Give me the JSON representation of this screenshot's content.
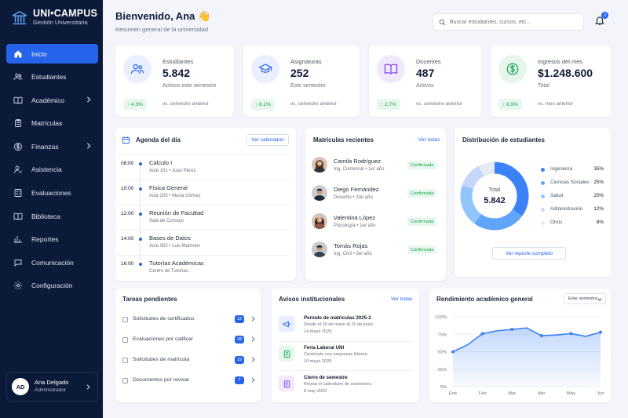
{
  "brand": {
    "title": "UNI•CAMPUS",
    "subtitle": "Gestión Universitaria"
  },
  "nav": {
    "items": [
      {
        "label": "Inicio"
      },
      {
        "label": "Estudiantes"
      },
      {
        "label": "Académico"
      },
      {
        "label": "Matrículas"
      },
      {
        "label": "Finanzas"
      },
      {
        "label": "Asistencia"
      },
      {
        "label": "Evaluaciones"
      },
      {
        "label": "Biblioteca"
      },
      {
        "label": "Reportes"
      },
      {
        "label": "Comunicación"
      },
      {
        "label": "Configuración"
      }
    ]
  },
  "user": {
    "initials": "AD",
    "name": "Ana Delgado",
    "role": "Administrador"
  },
  "header": {
    "greeting": "Bienvenido, Ana 👋",
    "subtitle": "Resumen general de la universidad",
    "search_placeholder": "Buscar estudiantes, cursos, etc...",
    "notifications": "3"
  },
  "stats": [
    {
      "label": "Estudiantes",
      "value": "5.842",
      "note": "Activos este semestre",
      "trend": "↑ 4.3%",
      "compare": "vs. semestre anterior"
    },
    {
      "label": "Asignaturas",
      "value": "252",
      "note": "Este semestre",
      "trend": "↑ 6.1%",
      "compare": "vs. semestre anterior"
    },
    {
      "label": "Docentes",
      "value": "487",
      "note": "Activos",
      "trend": "↑ 2.7%",
      "compare": "vs. semestre anterior"
    },
    {
      "label": "Ingresos del mes",
      "value": "$1.248.600",
      "note": "Total",
      "trend": "↑ 8.9%",
      "compare": "vs. mes anterior"
    }
  ],
  "agenda": {
    "title": "Agenda del día",
    "button": "Ver calendario",
    "items": [
      {
        "time": "08:00",
        "title": "Cálculo I",
        "meta": "Aula 101  •  Juan Pérez"
      },
      {
        "time": "10:00",
        "title": "Física General",
        "meta": "Aula 203  •  María Gómez"
      },
      {
        "time": "12:00",
        "title": "Reunión de Facultad",
        "meta": "Sala de Consejo"
      },
      {
        "time": "14:00",
        "title": "Bases de Datos",
        "meta": "Aula 302  •  Luis Martínez"
      },
      {
        "time": "16:00",
        "title": "Tutorías Académicas",
        "meta": "Centro de Tutorías"
      }
    ]
  },
  "enrollments": {
    "title": "Matrículas recientes",
    "link": "Ver todas",
    "items": [
      {
        "name": "Camila Rodríguez",
        "meta": "Ing. Comercial  •  1er año",
        "status": "Confirmada"
      },
      {
        "name": "Diego Fernández",
        "meta": "Derecho  •  2do año",
        "status": "Confirmada"
      },
      {
        "name": "Valentina López",
        "meta": "Psicología  •  1er año",
        "status": "Confirmada"
      },
      {
        "name": "Tomás Rojas",
        "meta": "Ing. Civil  •  3er año",
        "status": "Confirmada"
      }
    ]
  },
  "distribution": {
    "title": "Distribución de estudiantes",
    "center_label": "Total",
    "center_value": "5.842",
    "button": "Ver reporte completo",
    "segments": [
      {
        "name": "Ingeniería",
        "pct": "35%",
        "value": 35,
        "color": "#3b82f6"
      },
      {
        "name": "Ciencias Sociales",
        "pct": "25%",
        "value": 25,
        "color": "#60a5fa"
      },
      {
        "name": "Salud",
        "pct": "20%",
        "value": 20,
        "color": "#93c5fd"
      },
      {
        "name": "Administración",
        "pct": "12%",
        "value": 12,
        "color": "#c7d7fb"
      },
      {
        "name": "Otros",
        "pct": "8%",
        "value": 8,
        "color": "#e5eaf3"
      }
    ]
  },
  "tasks": {
    "title": "Tareas pendientes",
    "items": [
      {
        "label": "Solicitudes de certificados",
        "count": "12"
      },
      {
        "label": "Evaluaciones por calificar",
        "count": "28"
      },
      {
        "label": "Solicitudes de matrícula",
        "count": "19"
      },
      {
        "label": "Documentos por revisar",
        "count": "7"
      }
    ]
  },
  "notices": {
    "title": "Avisos institucionales",
    "link": "Ver todas",
    "items": [
      {
        "title": "Periodo de matrículas 2025-2",
        "desc": "Desde el 20 de mayo al 15 de junio.",
        "date": "14 mayo 2025",
        "icon": "megaphone-icon",
        "bg": "#e6efff",
        "fg": "#2563eb"
      },
      {
        "title": "Feria Laboral UNI",
        "desc": "Conéctate con empresas líderes.",
        "date": "10 mayo 2025",
        "icon": "document-icon",
        "bg": "#e6f6ec",
        "fg": "#16a34a"
      },
      {
        "title": "Cierre de semestre",
        "desc": "Revisa el calendario de exámenes.",
        "date": "8 may 2025",
        "icon": "notepad-icon",
        "bg": "#efe9fb",
        "fg": "#7c3aed"
      }
    ]
  },
  "performance": {
    "title": "Rendimiento académico general",
    "select": "Este semestre"
  },
  "chart_data": {
    "type": "area",
    "title": "Rendimiento académico general",
    "categories": [
      "Ene",
      "Feb",
      "Mar",
      "Abr",
      "May",
      "Jun"
    ],
    "x": [
      "Ene",
      "",
      "Feb",
      "",
      "Mar",
      "",
      "Abr",
      "",
      "May",
      "",
      "Jun"
    ],
    "series": [
      {
        "values": [
          50,
          60,
          76,
          80,
          82,
          84,
          73,
          74,
          76,
          72,
          78
        ]
      }
    ],
    "yticks": [
      "0%",
      "25%",
      "50%",
      "75%",
      "100%"
    ],
    "ylim": [
      0,
      100
    ],
    "grid": true,
    "color": "#3b82f6"
  }
}
